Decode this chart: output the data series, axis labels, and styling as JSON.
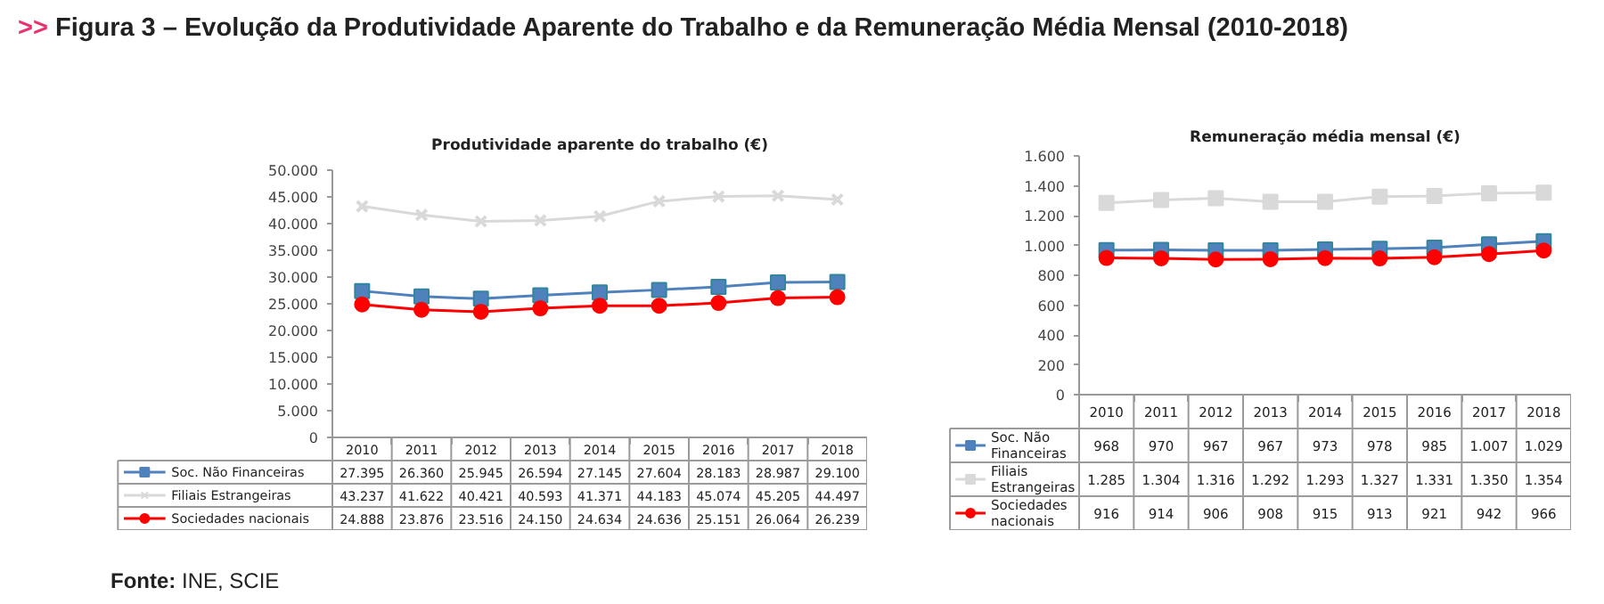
{
  "chart_data": [
    {
      "type": "line",
      "title": ">> Figura 3 – Evolução da Produtividade Aparente do Trabalho e da Remuneração Média Mensal (2010-2018)",
      "subtitle": "Produtividade aparente do trabalho (€)",
      "categories": [
        "2010",
        "2011",
        "2012",
        "2013",
        "2014",
        "2015",
        "2016",
        "2017",
        "2018"
      ],
      "ylim": [
        0,
        50000
      ],
      "yticks": [
        {
          "value": 0,
          "label": "0"
        },
        {
          "value": 5000,
          "label": "5.000"
        },
        {
          "value": 10000,
          "label": "10.000"
        },
        {
          "value": 15000,
          "label": "15.000"
        },
        {
          "value": 20000,
          "label": "20.000"
        },
        {
          "value": 25000,
          "label": "25.000"
        },
        {
          "value": 30000,
          "label": "30.000"
        },
        {
          "value": 35000,
          "label": "35.000"
        },
        {
          "value": 40000,
          "label": "40.000"
        },
        {
          "value": 45000,
          "label": "45.000"
        },
        {
          "value": 50000,
          "label": "50.000"
        }
      ],
      "grid": false,
      "legend": "bottom",
      "series": [
        {
          "name": "Soc. Não Financeiras",
          "color": "#4f81bd",
          "marker": "square",
          "values": [
            27395,
            26360,
            25945,
            26594,
            27145,
            27604,
            28183,
            28987,
            29100
          ],
          "value_labels": [
            "27.395",
            "26.360",
            "25.945",
            "26.594",
            "27.145",
            "27.604",
            "28.183",
            "28.987",
            "29.100"
          ]
        },
        {
          "name": "Filiais Estrangeiras",
          "color": "#d9d9d9",
          "marker": "cross",
          "values": [
            43237,
            41622,
            40421,
            40593,
            41371,
            44183,
            45074,
            45205,
            44497
          ],
          "value_labels": [
            "43.237",
            "41.622",
            "40.421",
            "40.593",
            "41.371",
            "44.183",
            "45.074",
            "45.205",
            "44.497"
          ]
        },
        {
          "name": "Sociedades nacionais",
          "color": "#ff0000",
          "marker": "circle",
          "values": [
            24888,
            23876,
            23516,
            24150,
            24634,
            24636,
            25151,
            26064,
            26239
          ],
          "value_labels": [
            "24.888",
            "23.876",
            "23.516",
            "24.150",
            "24.634",
            "24.636",
            "25.151",
            "26.064",
            "26.239"
          ]
        }
      ],
      "annotations": [
        "Fonte: INE, SCIE"
      ]
    },
    {
      "type": "line",
      "title": "Remuneração média mensal (€)",
      "categories": [
        "2010",
        "2011",
        "2012",
        "2013",
        "2014",
        "2015",
        "2016",
        "2017",
        "2018"
      ],
      "ylim": [
        0,
        1600
      ],
      "yticks": [
        0,
        200,
        400,
        600,
        800,
        {
          "value": 1000,
          "label": "1.000"
        },
        {
          "value": 1200,
          "label": "1.200"
        },
        {
          "value": 1400,
          "label": "1.400"
        },
        {
          "value": 1600,
          "label": "1.600"
        }
      ],
      "grid": false,
      "legend": "bottom",
      "series": [
        {
          "name": "Soc. Não Financeiras",
          "color": "#4f81bd",
          "marker": "square",
          "values": [
            968,
            970,
            967,
            967,
            973,
            978,
            985,
            1007,
            1029
          ],
          "value_labels": [
            "968",
            "970",
            "967",
            "967",
            "973",
            "978",
            "985",
            "1.007",
            "1.029"
          ]
        },
        {
          "name": "Filiais Estrangeiras",
          "color": "#d9d9d9",
          "marker": "square",
          "values": [
            1285,
            1304,
            1316,
            1292,
            1293,
            1327,
            1331,
            1350,
            1354
          ],
          "value_labels": [
            "1.285",
            "1.304",
            "1.316",
            "1.292",
            "1.293",
            "1.327",
            "1.331",
            "1.350",
            "1.354"
          ]
        },
        {
          "name": "Sociedades nacionais",
          "color": "#ff0000",
          "marker": "circle",
          "values": [
            916,
            914,
            906,
            908,
            915,
            913,
            921,
            942,
            966
          ],
          "value_labels": [
            "916",
            "914",
            "906",
            "908",
            "915",
            "913",
            "921",
            "942",
            "966"
          ]
        }
      ]
    }
  ]
}
